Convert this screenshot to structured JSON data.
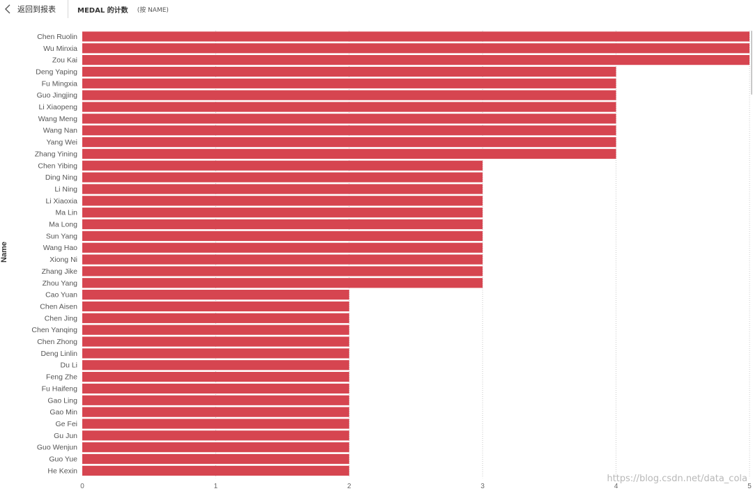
{
  "header": {
    "back_label": "返回到报表",
    "title": "MEDAL 的计数",
    "subtitle": "(按 NAME)"
  },
  "watermark": "https://blog.csdn.net/data_cola",
  "chart_data": {
    "type": "bar",
    "orientation": "horizontal",
    "ylabel": "Name",
    "xlabel": "",
    "xlim": [
      0,
      5
    ],
    "xticks": [
      0,
      1,
      2,
      3,
      4,
      5
    ],
    "grid": true,
    "bar_color": "#d64550",
    "categories": [
      "Chen Ruolin",
      "Wu Minxia",
      "Zou Kai",
      "Deng Yaping",
      "Fu Mingxia",
      "Guo Jingjing",
      "Li Xiaopeng",
      "Wang Meng",
      "Wang Nan",
      "Yang Wei",
      "Zhang Yining",
      "Chen Yibing",
      "Ding Ning",
      "Li Ning",
      "Li Xiaoxia",
      "Ma Lin",
      "Ma Long",
      "Sun Yang",
      "Wang Hao",
      "Xiong Ni",
      "Zhang Jike",
      "Zhou Yang",
      "Cao Yuan",
      "Chen Aisen",
      "Chen Jing",
      "Chen Yanqing",
      "Chen Zhong",
      "Deng Linlin",
      "Du Li",
      "Feng Zhe",
      "Fu Haifeng",
      "Gao Ling",
      "Gao Min",
      "Ge Fei",
      "Gu Jun",
      "Guo Wenjun",
      "Guo Yue",
      "He Kexin"
    ],
    "values": [
      5,
      5,
      5,
      4,
      4,
      4,
      4,
      4,
      4,
      4,
      4,
      3,
      3,
      3,
      3,
      3,
      3,
      3,
      3,
      3,
      3,
      3,
      2,
      2,
      2,
      2,
      2,
      2,
      2,
      2,
      2,
      2,
      2,
      2,
      2,
      2,
      2,
      2
    ]
  }
}
